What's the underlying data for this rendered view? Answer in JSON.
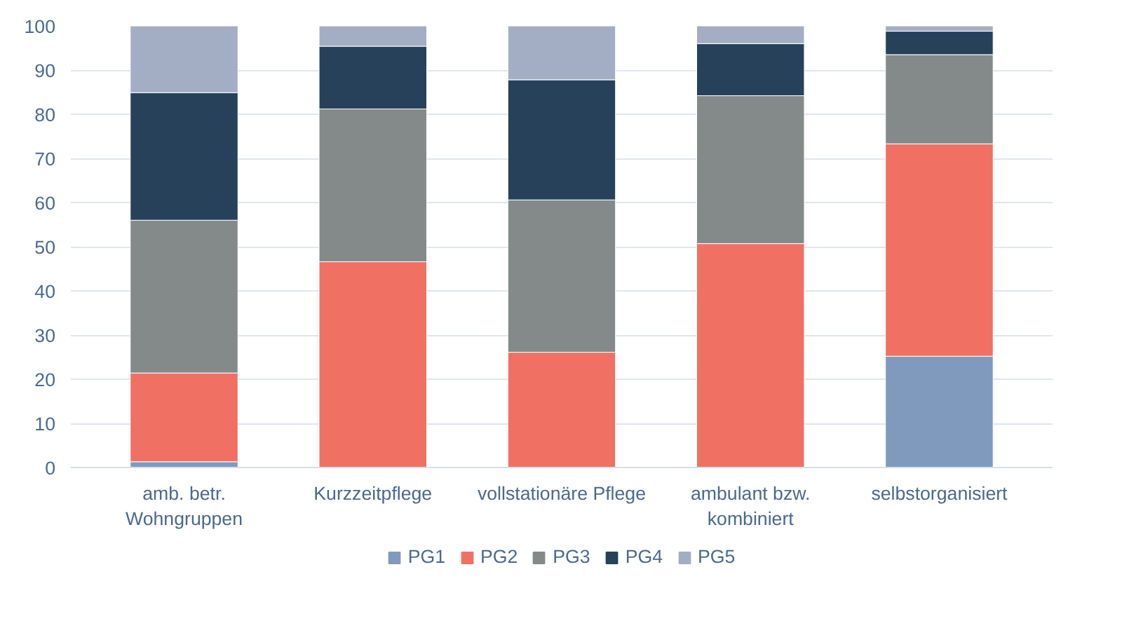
{
  "chart_data": {
    "type": "bar",
    "stacked": true,
    "categories": [
      "amb. betr.\nWohngruppen",
      "Kurzzeitpflege",
      "vollstationäre Pflege",
      "ambulant bzw.\nkombiniert",
      "selbstorganisiert"
    ],
    "series": [
      {
        "name": "PG1",
        "color": "#7f9abd",
        "values": [
          1.3,
          0,
          0,
          0,
          25.2
        ]
      },
      {
        "name": "PG2",
        "color": "#f07064",
        "values": [
          20.1,
          46.6,
          26.1,
          50.7,
          48.1
        ]
      },
      {
        "name": "PG3",
        "color": "#848a8a",
        "values": [
          34.6,
          34.6,
          34.5,
          33.5,
          20.2
        ]
      },
      {
        "name": "PG4",
        "color": "#27415a",
        "values": [
          28.9,
          14.2,
          27.2,
          11.8,
          5.3
        ]
      },
      {
        "name": "PG5",
        "color": "#a3aec4",
        "values": [
          15.1,
          4.6,
          12.2,
          4.0,
          1.2
        ]
      }
    ],
    "ylim": [
      0,
      100
    ],
    "yticks": [
      0,
      10,
      20,
      30,
      40,
      50,
      60,
      70,
      80,
      90,
      100
    ],
    "grid": "y",
    "legend": "bottom"
  }
}
